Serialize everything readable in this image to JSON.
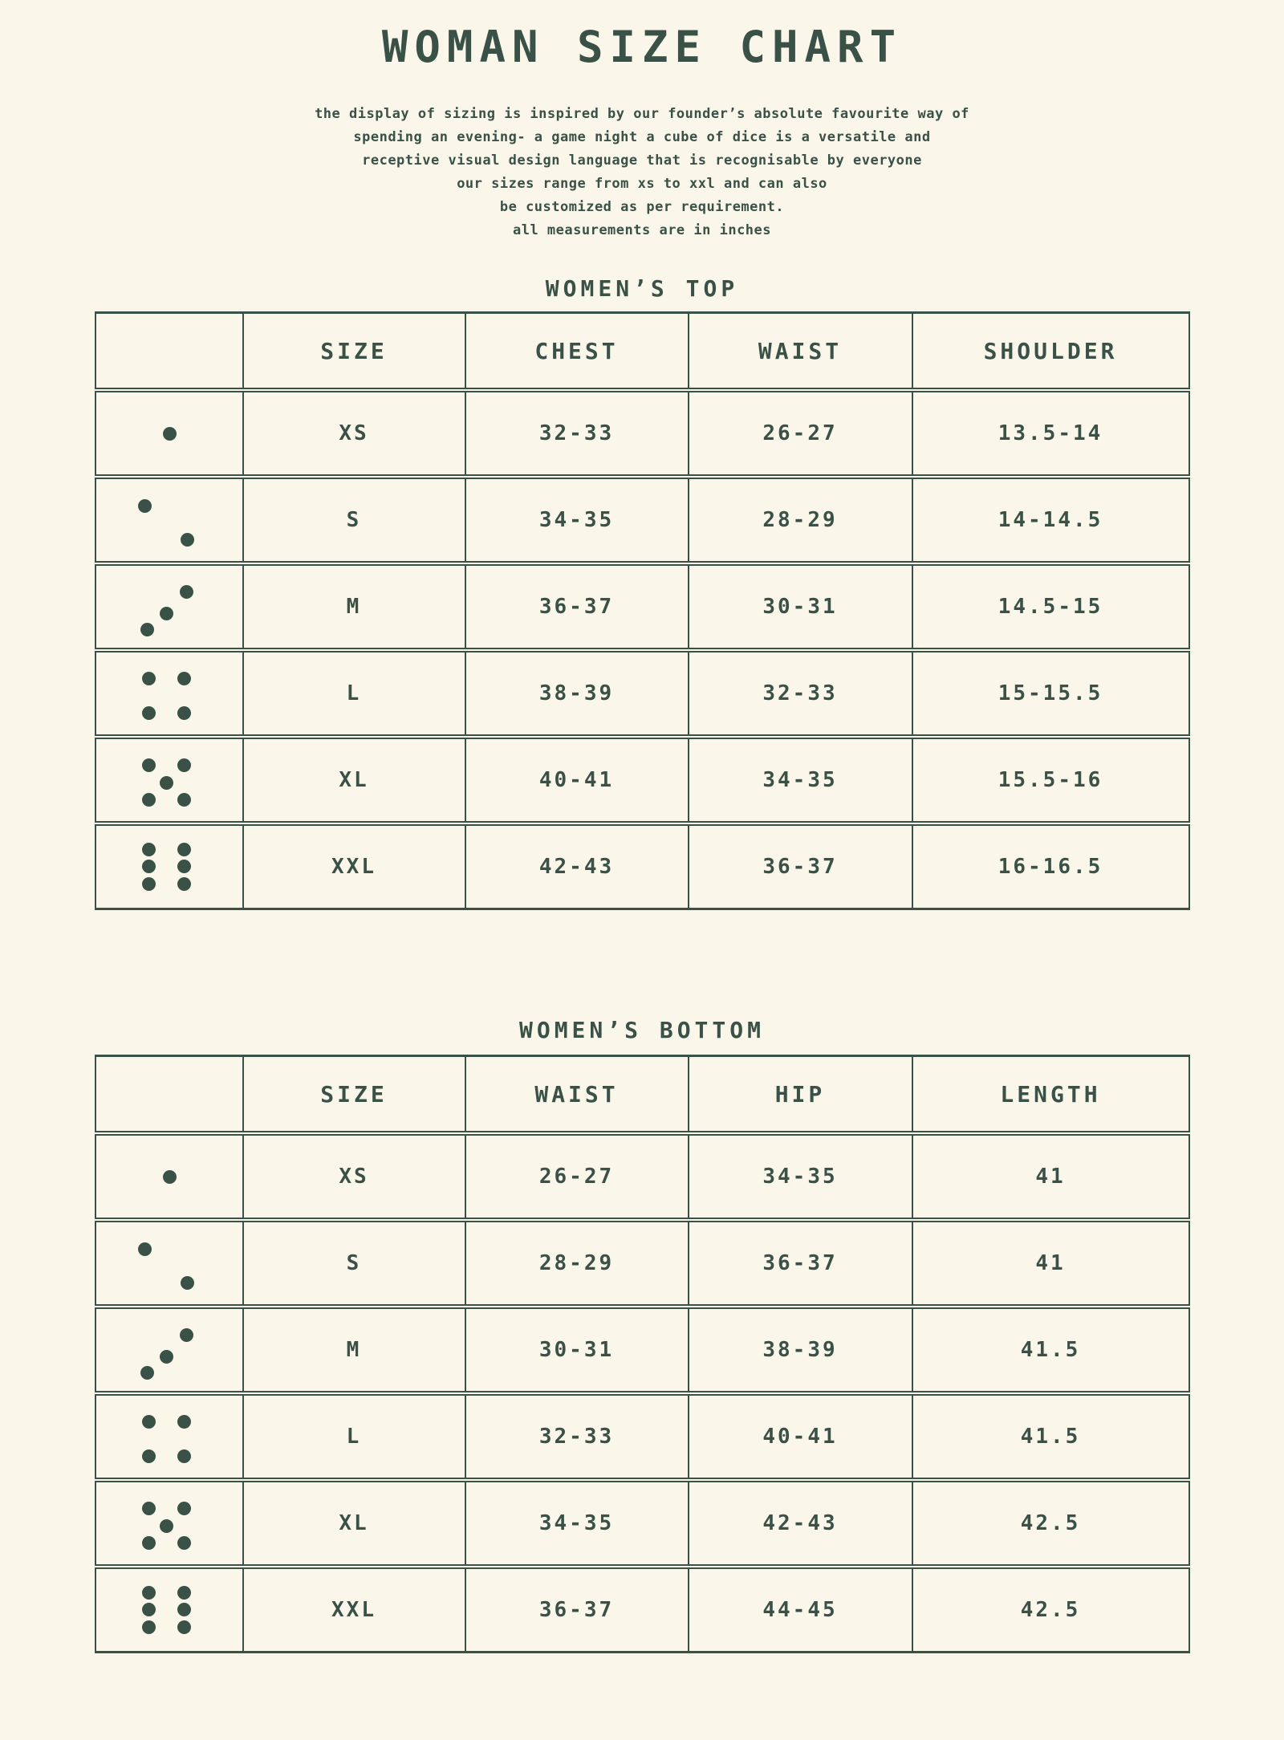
{
  "colors": {
    "background": "#faf6ea",
    "ink": "#3a5148"
  },
  "page": {
    "title": "WOMAN SIZE CHART",
    "intro_lines": [
      "the display of sizing is inspired by our founder’s absolute favourite way of",
      "spending an evening- a game night a cube of dice is a versatile and",
      "receptive visual design language that is recognisable by everyone",
      "our sizes range from xs to xxl and can also",
      "be customized as per requirement.",
      "all measurements are in inches"
    ]
  },
  "sections": [
    {
      "heading": "WOMEN’S TOP",
      "columns": [
        "SIZE",
        "CHEST",
        "WAIST",
        "SHOULDER"
      ],
      "rows": [
        {
          "dice_icon": "dice-face-1",
          "size": "XS",
          "values": [
            "32-33",
            "26-27",
            "13.5-14"
          ]
        },
        {
          "dice_icon": "dice-face-2",
          "size": "S",
          "values": [
            "34-35",
            "28-29",
            "14-14.5"
          ]
        },
        {
          "dice_icon": "dice-face-3",
          "size": "M",
          "values": [
            "36-37",
            "30-31",
            "14.5-15"
          ]
        },
        {
          "dice_icon": "dice-face-4",
          "size": "L",
          "values": [
            "38-39",
            "32-33",
            "15-15.5"
          ]
        },
        {
          "dice_icon": "dice-face-5",
          "size": "XL",
          "values": [
            "40-41",
            "34-35",
            "15.5-16"
          ]
        },
        {
          "dice_icon": "dice-face-6",
          "size": "XXL",
          "values": [
            "42-43",
            "36-37",
            "16-16.5"
          ]
        }
      ]
    },
    {
      "heading": "WOMEN’S BOTTOM",
      "columns": [
        "SIZE",
        "WAIST",
        "HIP",
        "LENGTH"
      ],
      "rows": [
        {
          "dice_icon": "dice-face-1",
          "size": "XS",
          "values": [
            "26-27",
            "34-35",
            "41"
          ]
        },
        {
          "dice_icon": "dice-face-2",
          "size": "S",
          "values": [
            "28-29",
            "36-37",
            "41"
          ]
        },
        {
          "dice_icon": "dice-face-3",
          "size": "M",
          "values": [
            "30-31",
            "38-39",
            "41.5"
          ]
        },
        {
          "dice_icon": "dice-face-4",
          "size": "L",
          "values": [
            "32-33",
            "40-41",
            "41.5"
          ]
        },
        {
          "dice_icon": "dice-face-5",
          "size": "XL",
          "values": [
            "34-35",
            "42-43",
            "42.5"
          ]
        },
        {
          "dice_icon": "dice-face-6",
          "size": "XXL",
          "values": [
            "36-37",
            "44-45",
            "42.5"
          ]
        }
      ]
    }
  ]
}
